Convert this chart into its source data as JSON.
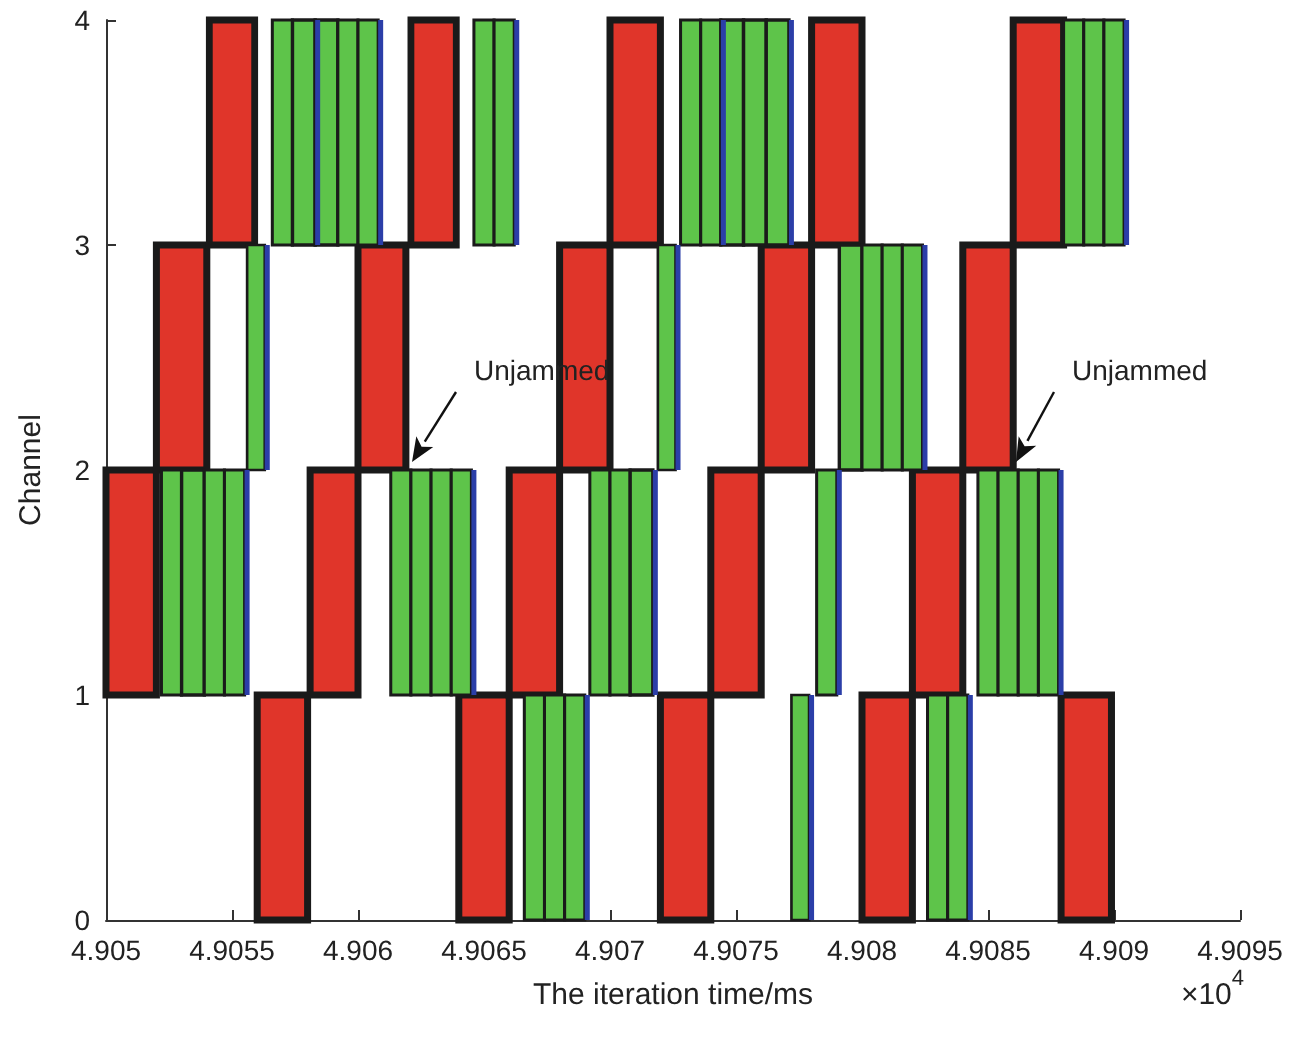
{
  "chart_data": {
    "type": "bar",
    "orientation": "horizontal",
    "xlabel": "The iteration time/ms",
    "ylabel": "Channel",
    "xlim": [
      4.905,
      4.9095
    ],
    "xticks": [
      4.905,
      4.9055,
      4.906,
      4.9065,
      4.907,
      4.9075,
      4.908,
      4.9085,
      4.909,
      4.9095
    ],
    "ylim": [
      0,
      4
    ],
    "yticks": [
      0,
      1,
      2,
      3,
      4
    ],
    "grid": false,
    "annotations": [
      "Unjammed",
      "Unjammed",
      "×10$^{4}$"
    ],
    "series": [
      {
        "color": "#e0352a",
        "x": [
          0.5,
          1.5,
          2.5,
          3.5
        ],
        "base": [
          4.9056,
          4.905,
          4.9052,
          4.90541
        ],
        "values": [
          0.0002,
          0.0002,
          0.0002,
          0.00018
        ]
      },
      {
        "color": "#e0352a",
        "x": [
          0.5,
          1.5,
          2.5,
          3.5
        ],
        "base": [
          4.9064,
          4.90581,
          4.906,
          4.90621
        ],
        "values": [
          0.0002,
          0.00019,
          0.00019,
          0.00018
        ]
      },
      {
        "color": "#e0352a",
        "x": [
          0.5,
          1.5,
          2.5,
          3.5
        ],
        "base": [
          4.9072,
          4.9066,
          4.9068,
          4.907
        ],
        "values": [
          0.0002,
          0.0002,
          0.0002,
          0.0002
        ]
      },
      {
        "color": "#e0352a",
        "x": [
          0.5,
          1.5,
          2.5,
          3.5
        ],
        "base": [
          4.908,
          4.9074,
          4.9076,
          4.9078
        ],
        "values": [
          0.0002,
          0.0002,
          0.0002,
          0.0002
        ]
      },
      {
        "color": "#e0352a",
        "x": [
          0.5,
          1.5,
          2.5,
          3.5
        ],
        "base": [
          4.90879,
          4.9082,
          4.9084,
          4.9086
        ],
        "values": [
          0.0002,
          0.0002,
          0.0002,
          0.0002
        ]
      },
      {
        "color": "#5ec44a",
        "x": [
          0.5,
          1.5,
          2.5,
          3.5
        ],
        "base": [
          4.90666,
          4.90522,
          4.90556,
          4.90566
        ],
        "values": [
          8e-05,
          8e-05,
          7e-05,
          8e-05
        ]
      },
      {
        "color": "#5ec44a",
        "x": [
          0.5,
          1.5,
          2.5,
          3.5
        ],
        "base": [
          4.90674,
          4.9053,
          4.90719,
          4.90574
        ],
        "values": [
          8e-05,
          9e-05,
          7e-05,
          9e-05
        ]
      },
      {
        "color": "#5ec44a",
        "x": [
          0.5,
          1.5,
          2.5,
          3.5
        ],
        "base": [
          4.90682,
          4.90539,
          4.90791,
          4.90583
        ],
        "values": [
          8e-05,
          8e-05,
          9e-05,
          9e-05
        ]
      },
      {
        "color": "#5ec44a",
        "x": [
          0.5,
          1.5,
          2.5,
          3.5
        ],
        "base": [
          4.90772,
          4.90547,
          4.908,
          4.90592
        ],
        "values": [
          7e-05,
          8e-05,
          8e-05,
          8e-05
        ]
      },
      {
        "color": "#5ec44a",
        "x": [
          0.5,
          1.5,
          2.5,
          3.5
        ],
        "base": [
          4.90826,
          4.90613,
          4.90808,
          4.906
        ],
        "values": [
          8e-05,
          8e-05,
          8e-05,
          8e-05
        ]
      },
      {
        "color": "#5ec44a",
        "x": [
          0.5,
          1.5,
          2.5,
          3.5
        ],
        "base": [
          4.90834,
          4.90621,
          4.90816,
          4.90646
        ],
        "values": [
          8e-05,
          8e-05,
          8e-05,
          8e-05
        ]
      },
      {
        "color": "#5ec44a",
        "x": [
          null,
          1.5,
          null,
          3.5
        ],
        "base": [
          null,
          4.90629,
          null,
          4.90654
        ],
        "values": [
          null,
          8e-05,
          null,
          8e-05
        ]
      },
      {
        "color": "#5ec44a",
        "x": [
          null,
          1.5,
          null,
          3.5
        ],
        "base": [
          null,
          4.90637,
          null,
          4.90728
        ],
        "values": [
          null,
          8e-05,
          null,
          8e-05
        ]
      },
      {
        "color": "#5ec44a",
        "x": [
          null,
          1.5,
          null,
          3.5
        ],
        "base": [
          null,
          4.90692,
          null,
          4.90736
        ],
        "values": [
          null,
          8e-05,
          null,
          8e-05
        ]
      },
      {
        "color": "#5ec44a",
        "x": [
          null,
          1.5,
          null,
          3.5
        ],
        "base": [
          null,
          4.907,
          null,
          4.90744
        ],
        "values": [
          null,
          8e-05,
          null,
          9e-05
        ]
      },
      {
        "color": "#5ec44a",
        "x": [
          null,
          1.5,
          null,
          3.5
        ],
        "base": [
          null,
          4.90708,
          null,
          4.90753
        ],
        "values": [
          null,
          9e-05,
          null,
          9e-05
        ]
      },
      {
        "color": "#5ec44a",
        "x": [
          null,
          1.5,
          null,
          3.5
        ],
        "base": [
          null,
          4.90782,
          null,
          4.90762
        ],
        "values": [
          null,
          8e-05,
          null,
          9e-05
        ]
      },
      {
        "color": "#5ec44a",
        "x": [
          null,
          1.5,
          null,
          3.5
        ],
        "base": [
          null,
          4.90846,
          null,
          4.9088
        ],
        "values": [
          null,
          8e-05,
          null,
          8e-05
        ]
      },
      {
        "color": "#5ec44a",
        "x": [
          null,
          1.5,
          null,
          3.5
        ],
        "base": [
          null,
          4.90854,
          null,
          4.90888
        ],
        "values": [
          null,
          8e-05,
          null,
          8e-05
        ]
      },
      {
        "color": "#5ec44a",
        "x": [
          null,
          1.5,
          null,
          3.5
        ],
        "base": [
          null,
          4.90862,
          null,
          4.90896
        ],
        "values": [
          null,
          8e-05,
          null,
          8e-05
        ]
      },
      {
        "color": "#5ec44a",
        "x": [
          null,
          1.5,
          null,
          null
        ],
        "base": [
          null,
          4.9087,
          null,
          null
        ],
        "values": [
          null,
          8e-05,
          null,
          null
        ]
      },
      {
        "color": "#2b3ea8",
        "x": [
          0.5,
          1.5,
          2.5,
          3.5
        ],
        "base": [
          4.9069,
          4.90555,
          4.90563,
          4.90583
        ],
        "values": [
          1e-05,
          1e-05,
          1e-05,
          1e-05
        ]
      },
      {
        "color": "#2b3ea8",
        "x": [
          0.5,
          1.5,
          2.5,
          3.5
        ],
        "base": [
          4.90779,
          4.90645,
          4.90726,
          4.90608
        ],
        "values": [
          1e-05,
          1e-05,
          1e-05,
          1e-05
        ]
      },
      {
        "color": "#2b3ea8",
        "x": [
          0.5,
          1.5,
          2.5,
          3.5
        ],
        "base": [
          4.90842,
          4.90717,
          4.90824,
          4.90662
        ],
        "values": [
          1e-05,
          1e-05,
          1e-05,
          1e-05
        ]
      },
      {
        "color": "#2b3ea8",
        "x": [
          null,
          1.5,
          null,
          3.5
        ],
        "base": [
          null,
          4.9079,
          null,
          4.90744
        ],
        "values": [
          null,
          1e-05,
          null,
          1e-05
        ]
      },
      {
        "color": "#2b3ea8",
        "x": [
          null,
          1.5,
          null,
          3.5
        ],
        "base": [
          null,
          4.90878,
          null,
          4.90771
        ],
        "values": [
          null,
          1e-05,
          null,
          1e-05
        ]
      },
      {
        "color": "#2b3ea8",
        "x": [
          null,
          null,
          null,
          3.5
        ],
        "base": [
          null,
          null,
          null,
          4.90904
        ],
        "values": [
          null,
          null,
          null,
          1e-05
        ]
      }
    ]
  }
}
